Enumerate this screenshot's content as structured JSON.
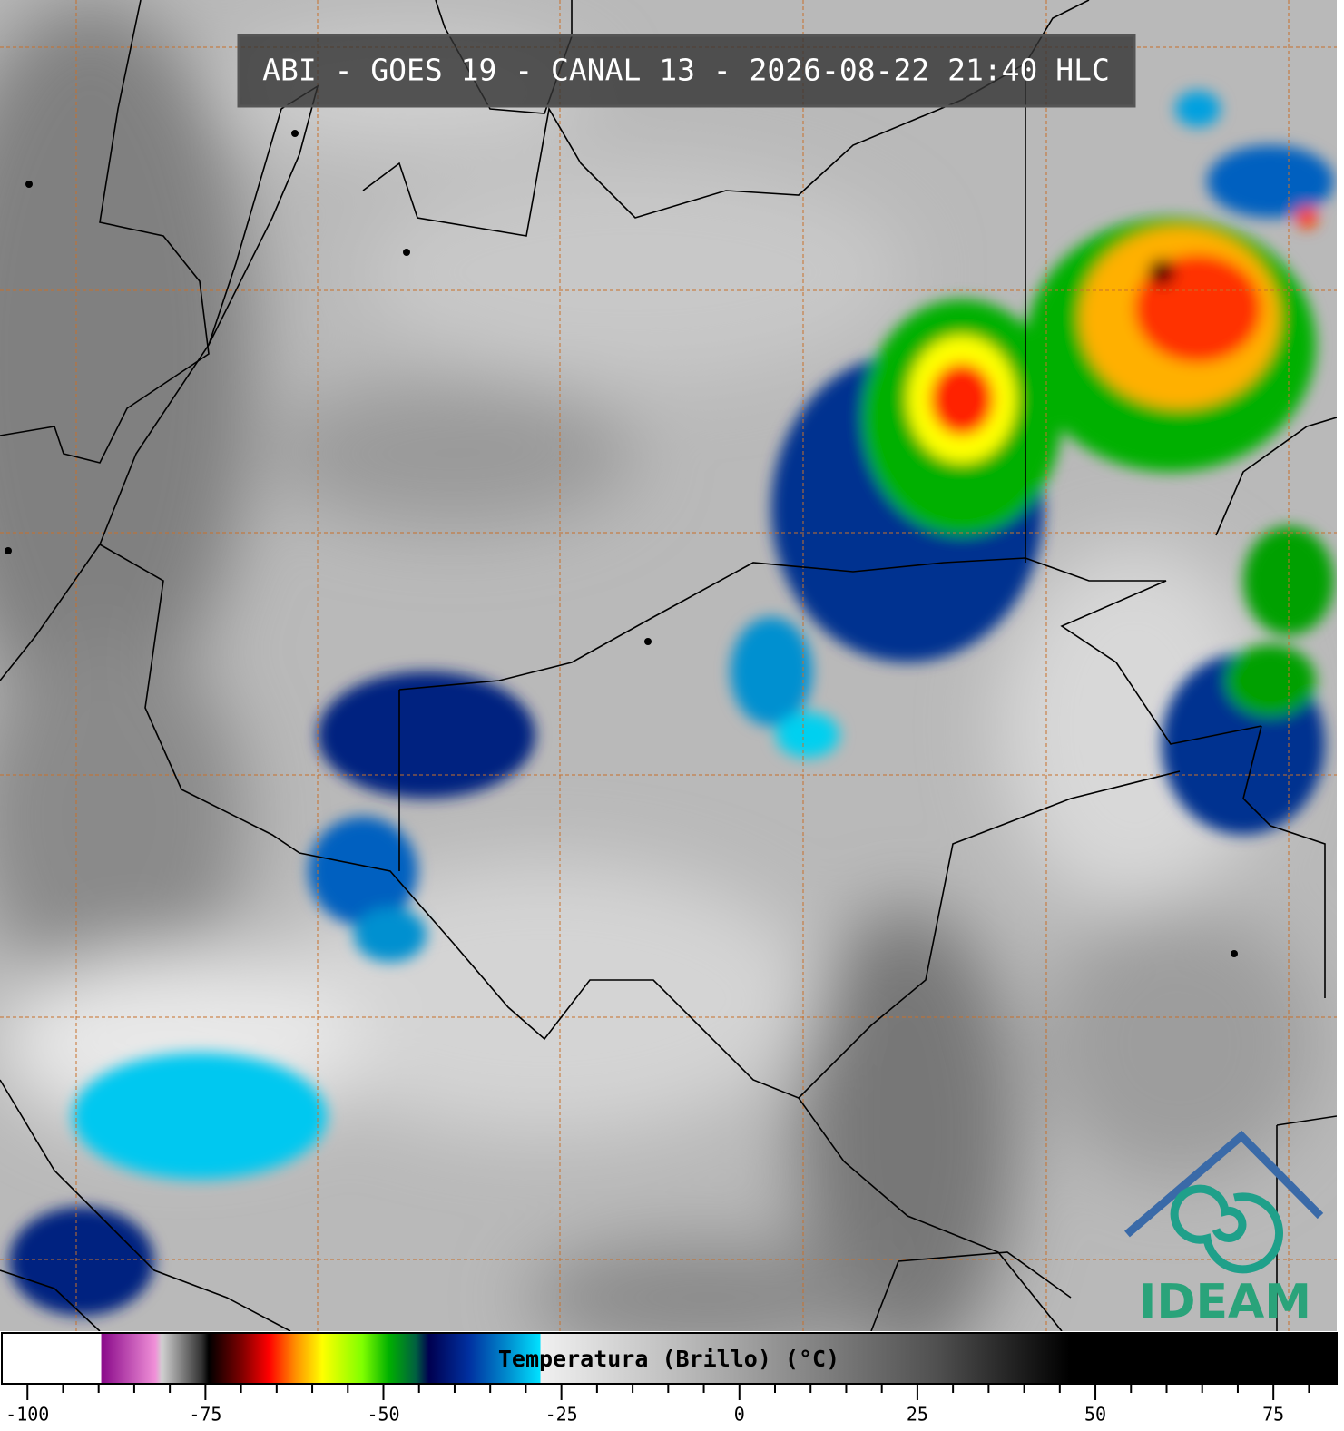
{
  "title": "ABI - GOES 19 - CANAL 13 - 2026-08-22 21:40 HLC",
  "colorbar": {
    "label": "Temperatura (Brillo) (°C)",
    "xlim": [
      -103.6,
      83.9
    ],
    "ticks": [
      -100,
      -75,
      -50,
      -25,
      0,
      25,
      50,
      75
    ],
    "minor_ticks": [
      -95,
      -90,
      -85,
      -80,
      -70,
      -65,
      -60,
      -55,
      -45,
      -40,
      -35,
      -30,
      -20,
      -15,
      -10,
      -5,
      5,
      10,
      15,
      20,
      30,
      35,
      40,
      45,
      55,
      60,
      65,
      70,
      80
    ]
  },
  "logo": {
    "text": "IDEAM"
  }
}
